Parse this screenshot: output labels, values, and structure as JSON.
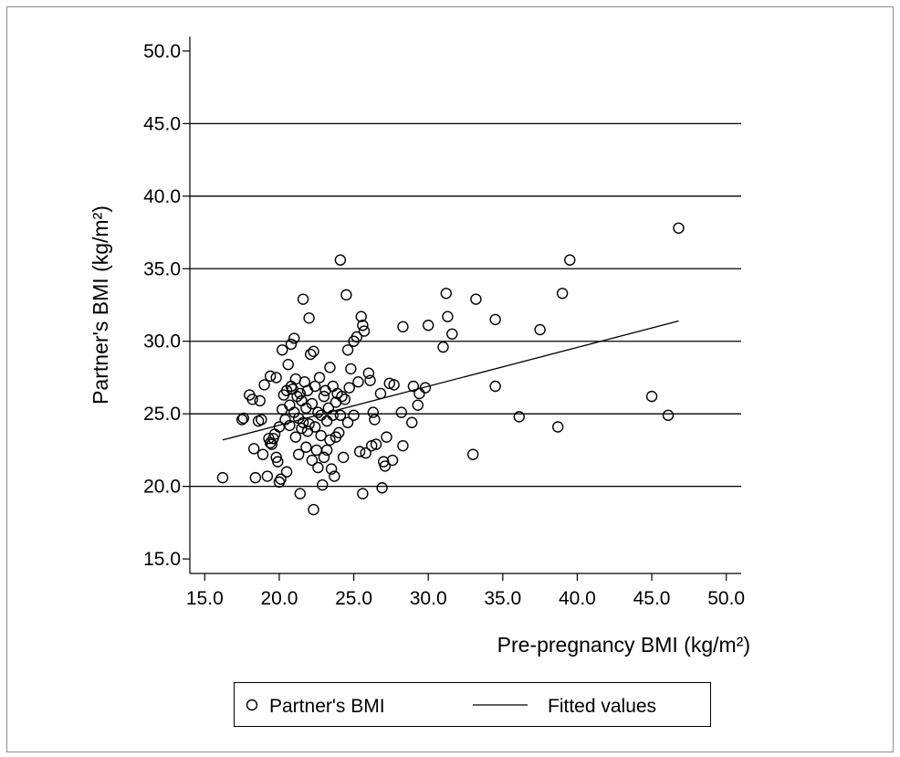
{
  "chart_data": {
    "type": "scatter",
    "xlabel": "Pre-pregnancy BMI (kg/m²)",
    "ylabel": "Partner's BMI  (kg/m²)",
    "xlim": [
      14.0,
      51.0
    ],
    "ylim": [
      14.0,
      51.0
    ],
    "x_ticks": [
      "15.0",
      "20.0",
      "25.0",
      "30.0",
      "35.0",
      "40.0",
      "45.0",
      "50.0"
    ],
    "y_ticks": [
      "15.0",
      "20.0",
      "25.0",
      "30.0",
      "35.0",
      "40.0",
      "45.0",
      "50.0"
    ],
    "grid": "horizontal",
    "legend_position": "bottom",
    "series": [
      {
        "name": "Partner's BMI",
        "marker": "hollow-circle",
        "points": [
          [
            16.2,
            20.6
          ],
          [
            17.5,
            24.6
          ],
          [
            17.6,
            24.7
          ],
          [
            18.0,
            26.3
          ],
          [
            18.2,
            26.0
          ],
          [
            18.3,
            22.6
          ],
          [
            18.4,
            20.6
          ],
          [
            18.6,
            24.5
          ],
          [
            18.7,
            25.9
          ],
          [
            18.8,
            24.6
          ],
          [
            18.9,
            22.2
          ],
          [
            19.0,
            27.0
          ],
          [
            19.2,
            20.7
          ],
          [
            19.3,
            23.3
          ],
          [
            19.4,
            27.6
          ],
          [
            19.4,
            23.0
          ],
          [
            19.5,
            22.9
          ],
          [
            19.6,
            23.3
          ],
          [
            19.7,
            23.6
          ],
          [
            19.8,
            27.5
          ],
          [
            19.8,
            22.0
          ],
          [
            19.9,
            21.7
          ],
          [
            20.0,
            24.1
          ],
          [
            20.0,
            20.3
          ],
          [
            20.1,
            20.5
          ],
          [
            20.2,
            25.3
          ],
          [
            20.2,
            29.4
          ],
          [
            20.3,
            26.3
          ],
          [
            20.4,
            24.6
          ],
          [
            20.5,
            21.0
          ],
          [
            20.5,
            26.6
          ],
          [
            20.6,
            28.4
          ],
          [
            20.7,
            25.6
          ],
          [
            20.7,
            24.2
          ],
          [
            20.8,
            26.9
          ],
          [
            20.8,
            29.8
          ],
          [
            20.9,
            26.7
          ],
          [
            21.0,
            30.2
          ],
          [
            21.0,
            25.1
          ],
          [
            21.1,
            27.4
          ],
          [
            21.1,
            23.4
          ],
          [
            21.2,
            26.2
          ],
          [
            21.3,
            22.2
          ],
          [
            21.3,
            24.7
          ],
          [
            21.4,
            19.5
          ],
          [
            21.4,
            26.4
          ],
          [
            21.5,
            24.0
          ],
          [
            21.5,
            25.9
          ],
          [
            21.6,
            32.9
          ],
          [
            21.6,
            24.4
          ],
          [
            21.7,
            27.2
          ],
          [
            21.8,
            22.7
          ],
          [
            21.8,
            25.4
          ],
          [
            21.9,
            23.8
          ],
          [
            21.9,
            26.6
          ],
          [
            22.0,
            31.6
          ],
          [
            22.0,
            24.3
          ],
          [
            22.1,
            29.1
          ],
          [
            22.2,
            21.8
          ],
          [
            22.2,
            25.7
          ],
          [
            22.3,
            29.3
          ],
          [
            22.3,
            18.4
          ],
          [
            22.4,
            24.1
          ],
          [
            22.4,
            26.9
          ],
          [
            22.5,
            22.5
          ],
          [
            22.6,
            25.1
          ],
          [
            22.6,
            21.3
          ],
          [
            22.7,
            27.5
          ],
          [
            22.8,
            23.5
          ],
          [
            22.8,
            24.9
          ],
          [
            22.9,
            20.1
          ],
          [
            23.0,
            26.2
          ],
          [
            23.0,
            22.0
          ],
          [
            23.1,
            26.6
          ],
          [
            23.2,
            24.5
          ],
          [
            23.2,
            22.5
          ],
          [
            23.3,
            25.4
          ],
          [
            23.4,
            28.2
          ],
          [
            23.4,
            23.2
          ],
          [
            23.5,
            21.2
          ],
          [
            23.6,
            26.9
          ],
          [
            23.6,
            24.9
          ],
          [
            23.7,
            20.7
          ],
          [
            23.8,
            25.8
          ],
          [
            23.8,
            23.4
          ],
          [
            23.9,
            26.4
          ],
          [
            24.0,
            23.7
          ],
          [
            24.1,
            35.6
          ],
          [
            24.1,
            24.9
          ],
          [
            24.2,
            26.2
          ],
          [
            24.3,
            22.0
          ],
          [
            24.4,
            26.0
          ],
          [
            24.5,
            33.2
          ],
          [
            24.6,
            24.4
          ],
          [
            24.6,
            29.4
          ],
          [
            24.7,
            26.8
          ],
          [
            24.8,
            28.1
          ],
          [
            25.0,
            24.9
          ],
          [
            25.0,
            30.0
          ],
          [
            25.2,
            30.3
          ],
          [
            25.3,
            27.2
          ],
          [
            25.4,
            22.4
          ],
          [
            25.5,
            31.7
          ],
          [
            25.6,
            19.5
          ],
          [
            25.6,
            31.1
          ],
          [
            25.7,
            30.7
          ],
          [
            25.8,
            22.3
          ],
          [
            26.0,
            27.8
          ],
          [
            26.1,
            27.3
          ],
          [
            26.2,
            22.8
          ],
          [
            26.3,
            25.1
          ],
          [
            26.4,
            24.6
          ],
          [
            26.5,
            22.9
          ],
          [
            26.8,
            26.4
          ],
          [
            26.9,
            19.9
          ],
          [
            27.0,
            21.7
          ],
          [
            27.1,
            21.4
          ],
          [
            27.2,
            23.4
          ],
          [
            27.4,
            27.1
          ],
          [
            27.6,
            21.8
          ],
          [
            27.7,
            27.0
          ],
          [
            28.2,
            25.1
          ],
          [
            28.3,
            31.0
          ],
          [
            28.3,
            22.8
          ],
          [
            28.9,
            24.4
          ],
          [
            29.0,
            26.9
          ],
          [
            29.3,
            25.6
          ],
          [
            29.4,
            26.4
          ],
          [
            29.8,
            26.8
          ],
          [
            30.0,
            31.1
          ],
          [
            31.0,
            29.6
          ],
          [
            31.2,
            33.3
          ],
          [
            31.3,
            31.7
          ],
          [
            31.6,
            30.5
          ],
          [
            33.0,
            22.2
          ],
          [
            33.2,
            32.9
          ],
          [
            34.5,
            31.5
          ],
          [
            34.5,
            26.9
          ],
          [
            36.1,
            24.8
          ],
          [
            37.5,
            30.8
          ],
          [
            38.7,
            24.1
          ],
          [
            39.0,
            33.3
          ],
          [
            39.5,
            35.6
          ],
          [
            45.0,
            26.2
          ],
          [
            46.1,
            24.9
          ],
          [
            46.8,
            37.8
          ]
        ]
      },
      {
        "name": "Fitted values",
        "marker": "line",
        "points": [
          [
            16.2,
            23.2
          ],
          [
            46.8,
            31.4
          ]
        ]
      }
    ]
  },
  "legend": {
    "items": [
      {
        "label": "Partner's BMI"
      },
      {
        "label": "Fitted values"
      }
    ]
  }
}
